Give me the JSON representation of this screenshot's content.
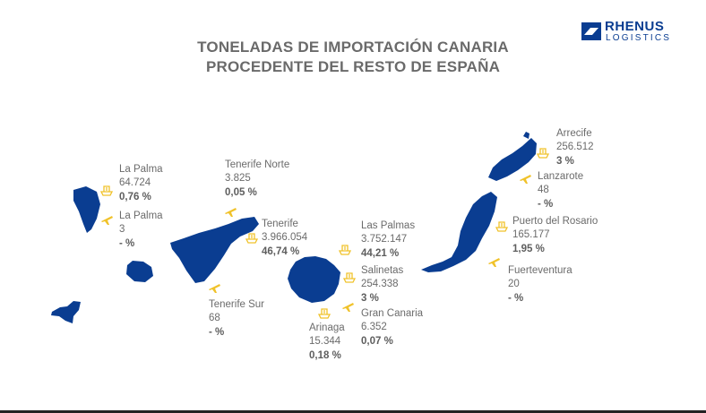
{
  "title": {
    "line1": "TONELADAS DE IMPORTACIÓN CANARIA",
    "line2": "PROCEDENTE DEL RESTO DE ESPAÑA"
  },
  "logo": {
    "line1": "RHENUS",
    "line2": "LOGISTICS"
  },
  "colors": {
    "island": "#0a3d91",
    "icon": "#f0c22a",
    "text": "#6b6b6b"
  },
  "ports": {
    "la_palma_port": {
      "name": "La Palma",
      "value": "64.724",
      "pct": "0,76 %",
      "icon": "port-icon"
    },
    "la_palma_air": {
      "name": "La Palma",
      "value": "3",
      "pct": "- %",
      "icon": "airplane-icon"
    },
    "tenerife_norte": {
      "name": "Tenerife Norte",
      "value": "3.825",
      "pct": "0,05 %",
      "icon": "airplane-icon"
    },
    "tenerife_port": {
      "name": "Tenerife",
      "value": "3.966.054",
      "pct": "46,74 %",
      "icon": "port-icon"
    },
    "tenerife_sur": {
      "name": "Tenerife Sur",
      "value": "68",
      "pct": "- %",
      "icon": "airplane-icon"
    },
    "las_palmas": {
      "name": "Las Palmas",
      "value": "3.752.147",
      "pct": "44,21 %",
      "icon": "port-icon"
    },
    "salinetas": {
      "name": "Salinetas",
      "value": "254.338",
      "pct": "3 %",
      "icon": "port-icon"
    },
    "gran_canaria_air": {
      "name": "Gran Canaria",
      "value": "6.352",
      "pct": "0,07 %",
      "icon": "airplane-icon"
    },
    "arinaga": {
      "name": "Arinaga",
      "value": "15.344",
      "pct": "0,18 %",
      "icon": "port-icon"
    },
    "arrecife": {
      "name": "Arrecife",
      "value": "256.512",
      "pct": "3 %",
      "icon": "port-icon"
    },
    "lanzarote_air": {
      "name": "Lanzarote",
      "value": "48",
      "pct": "- %",
      "icon": "airplane-icon"
    },
    "puerto_del_rosario": {
      "name": "Puerto del Rosario",
      "value": "165.177",
      "pct": "1,95 %",
      "icon": "port-icon"
    },
    "fuerteventura_air": {
      "name": "Fuerteventura",
      "value": "20",
      "pct": "- %",
      "icon": "airplane-icon"
    }
  }
}
